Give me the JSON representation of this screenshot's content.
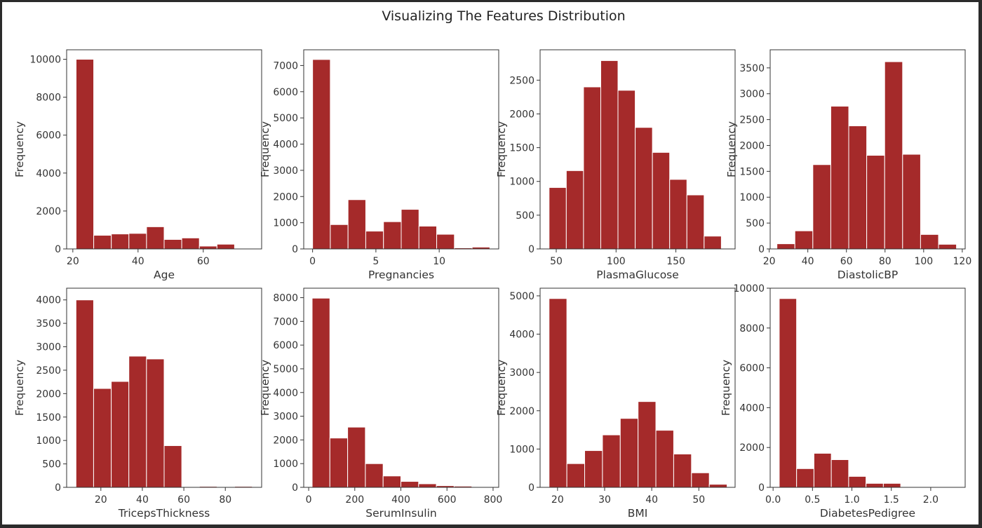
{
  "title": "Visualizing The Features Distribution",
  "bar_color": "#a52a2a",
  "chart_data": [
    {
      "type": "bar",
      "xlabel": "Age",
      "ylabel": "Frequency",
      "xlim": [
        18.1,
        77.9
      ],
      "ylim": [
        0,
        10500
      ],
      "xticks": [
        20,
        40,
        60
      ],
      "yticks": [
        0,
        2000,
        4000,
        6000,
        8000,
        10000
      ],
      "bin_edges": [
        21,
        26.4,
        31.8,
        37.2,
        42.6,
        48,
        53.4,
        58.8,
        64.2,
        69.6,
        75
      ],
      "values": [
        10000,
        720,
        790,
        820,
        1170,
        500,
        580,
        150,
        250,
        0
      ]
    },
    {
      "type": "bar",
      "xlabel": "Pregnancies",
      "ylabel": "Frequency",
      "xlim": [
        -0.7,
        14.7
      ],
      "ylim": [
        0,
        7600
      ],
      "xticks": [
        0,
        5,
        10
      ],
      "yticks": [
        0,
        1000,
        2000,
        3000,
        4000,
        5000,
        6000,
        7000
      ],
      "bin_edges": [
        0,
        1.4,
        2.8,
        4.2,
        5.6,
        7.0,
        8.4,
        9.8,
        11.2,
        12.6,
        14
      ],
      "values": [
        7230,
        930,
        1880,
        680,
        1040,
        1510,
        870,
        560,
        40,
        70
      ]
    },
    {
      "type": "bar",
      "xlabel": "PlasmaGlucose",
      "ylabel": "Frequency",
      "xlim": [
        36.5,
        199.5
      ],
      "ylim": [
        0,
        2950
      ],
      "xticks": [
        50,
        100,
        150
      ],
      "yticks": [
        0,
        500,
        1000,
        1500,
        2000,
        2500
      ],
      "bin_edges": [
        44,
        58.4,
        72.8,
        87.2,
        101.6,
        116,
        130.4,
        144.8,
        159.2,
        173.6,
        188
      ],
      "values": [
        910,
        1160,
        2400,
        2790,
        2350,
        1800,
        1430,
        1030,
        800,
        190
      ]
    },
    {
      "type": "bar",
      "xlabel": "DiastolicBP",
      "ylabel": "Frequency",
      "xlim": [
        20.5,
        121.5
      ],
      "ylim": [
        0,
        3850
      ],
      "xticks": [
        20,
        40,
        60,
        80,
        100,
        120
      ],
      "yticks": [
        0,
        500,
        1000,
        1500,
        2000,
        2500,
        3000,
        3500
      ],
      "bin_edges": [
        24,
        33.3,
        42.6,
        51.9,
        61.2,
        70.5,
        79.8,
        89.1,
        98.4,
        107.7,
        117
      ],
      "values": [
        100,
        350,
        1630,
        2760,
        2380,
        1810,
        3620,
        1830,
        280,
        90
      ]
    },
    {
      "type": "bar",
      "xlabel": "TricepsThickness",
      "ylabel": "Frequency",
      "xlim": [
        3.5,
        97.5
      ],
      "ylim": [
        0,
        4250
      ],
      "xticks": [
        20,
        40,
        60,
        80
      ],
      "yticks": [
        0,
        500,
        1000,
        1500,
        2000,
        2500,
        3000,
        3500,
        4000
      ],
      "bin_edges": [
        8,
        16.5,
        25,
        33.5,
        42,
        50.5,
        59,
        67.5,
        76,
        84.5,
        93
      ],
      "values": [
        4000,
        2110,
        2260,
        2800,
        2740,
        890,
        0,
        20,
        0,
        20
      ]
    },
    {
      "type": "bar",
      "xlabel": "SerumInsulin",
      "ylabel": "Frequency",
      "xlim": [
        -21.5,
        824.5
      ],
      "ylim": [
        0,
        8400
      ],
      "xticks": [
        0,
        200,
        400,
        600,
        800
      ],
      "yticks": [
        0,
        1000,
        2000,
        3000,
        4000,
        5000,
        6000,
        7000,
        8000
      ],
      "bin_edges": [
        15,
        92,
        169,
        246,
        323,
        400,
        477,
        554,
        631,
        708,
        785
      ],
      "values": [
        7980,
        2080,
        2540,
        1000,
        480,
        250,
        150,
        70,
        50,
        0
      ]
    },
    {
      "type": "bar",
      "xlabel": "BMI",
      "ylabel": "Frequency",
      "xlim": [
        16.3,
        57.7
      ],
      "ylim": [
        0,
        5200
      ],
      "xticks": [
        20,
        30,
        40,
        50
      ],
      "yticks": [
        0,
        1000,
        2000,
        3000,
        4000,
        5000
      ],
      "bin_edges": [
        18.2,
        21.98,
        25.76,
        29.54,
        33.32,
        37.1,
        40.88,
        44.66,
        48.44,
        52.22,
        56
      ],
      "values": [
        4930,
        620,
        960,
        1370,
        1800,
        2240,
        1490,
        870,
        380,
        80
      ]
    },
    {
      "type": "bar",
      "xlabel": "DiabetesPedigree",
      "ylabel": "Frequency",
      "xlim": [
        -0.037,
        2.437
      ],
      "ylim": [
        0,
        10000
      ],
      "xticks": [
        0.0,
        0.5,
        1.0,
        1.5,
        2.0
      ],
      "xtick_labels": [
        "0.0",
        "0.5",
        "1.0",
        "1.5",
        "2.0"
      ],
      "yticks": [
        0,
        2000,
        4000,
        6000,
        8000,
        10000
      ],
      "bin_edges": [
        0.078,
        0.2982,
        0.5184,
        0.7386,
        0.9588,
        1.179,
        1.3992,
        1.6194,
        1.8396,
        2.0598,
        2.28
      ],
      "values": [
        9480,
        940,
        1710,
        1390,
        550,
        200,
        200,
        0,
        0,
        0
      ]
    }
  ]
}
